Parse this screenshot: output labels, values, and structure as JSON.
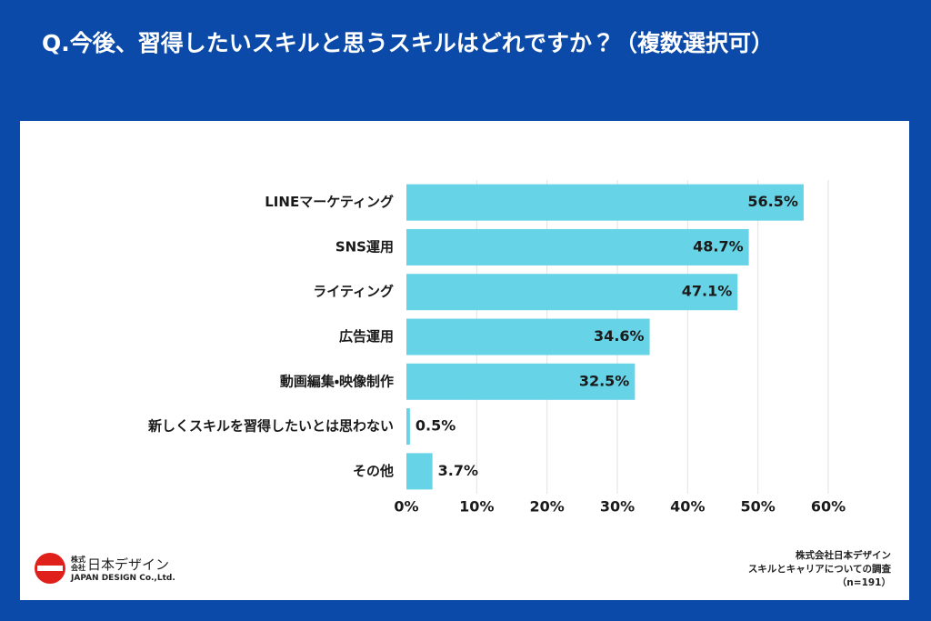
{
  "chart_data": {
    "type": "bar",
    "orientation": "horizontal",
    "title": "Q.今後、習得したいスキルと思うスキルはどれですか？（複数選択可）",
    "categories": [
      "LINEマーケティング",
      "SNS運用",
      "ライティング",
      "広告運用",
      "動画編集・映像制作",
      "新しくスキルを習得したいとは思わない",
      "その他"
    ],
    "values": [
      56.5,
      48.7,
      47.1,
      34.6,
      32.5,
      0.5,
      3.7
    ],
    "value_labels": [
      "56.5%",
      "48.7%",
      "47.1%",
      "34.6%",
      "32.5%",
      "0.5%",
      "3.7%"
    ],
    "color": "#66d3e6",
    "xlim": [
      0,
      60
    ],
    "xticks": [
      {
        "value": 0,
        "label": "0%"
      },
      {
        "value": 10,
        "label": "10%"
      },
      {
        "value": 20,
        "label": "20%"
      },
      {
        "value": 30,
        "label": "30%"
      },
      {
        "value": 40,
        "label": "40%"
      },
      {
        "value": 50,
        "label": "50%"
      },
      {
        "value": 60,
        "label": "60%"
      }
    ],
    "grid": true,
    "logo": {
      "prefix": "株式会社",
      "name": "日本デザイン",
      "english": "JAPAN DESIGN Co.,Ltd."
    },
    "source": [
      "株式会社日本デザイン",
      "スキルとキャリアについての調査",
      "（n=191）"
    ]
  }
}
